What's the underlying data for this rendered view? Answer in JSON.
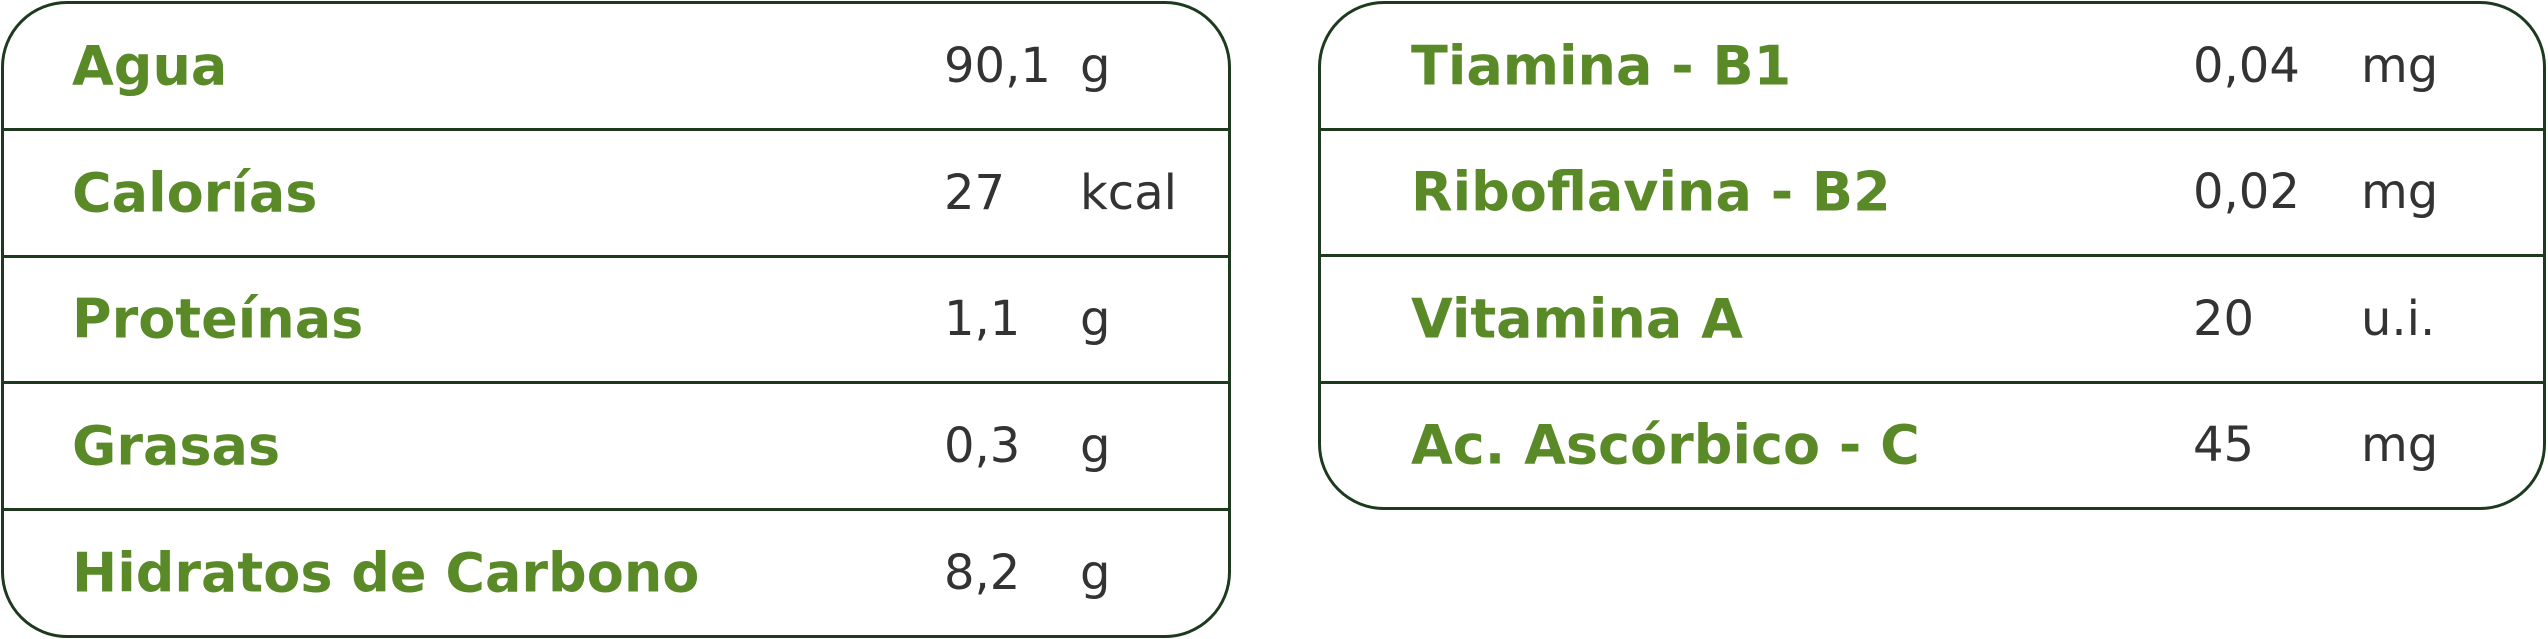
{
  "left_table": {
    "rows": [
      [
        "Agua",
        "90,1",
        "g"
      ],
      [
        "Calorías",
        "27",
        "kcal"
      ],
      [
        "Proteínas",
        "1,1",
        "g"
      ],
      [
        "Grasas",
        "0,3",
        "g"
      ],
      [
        "Hidratos de Carbono",
        "8,2",
        "g"
      ]
    ]
  },
  "right_table": {
    "rows": [
      [
        "Tiamina - B1",
        "0,04",
        "mg"
      ],
      [
        "Riboflavina - B2",
        "0,02",
        "mg"
      ],
      [
        "Vitamina A",
        "20",
        "u.i."
      ],
      [
        "Ac. Ascórbico - C",
        "45",
        "mg"
      ]
    ]
  }
}
